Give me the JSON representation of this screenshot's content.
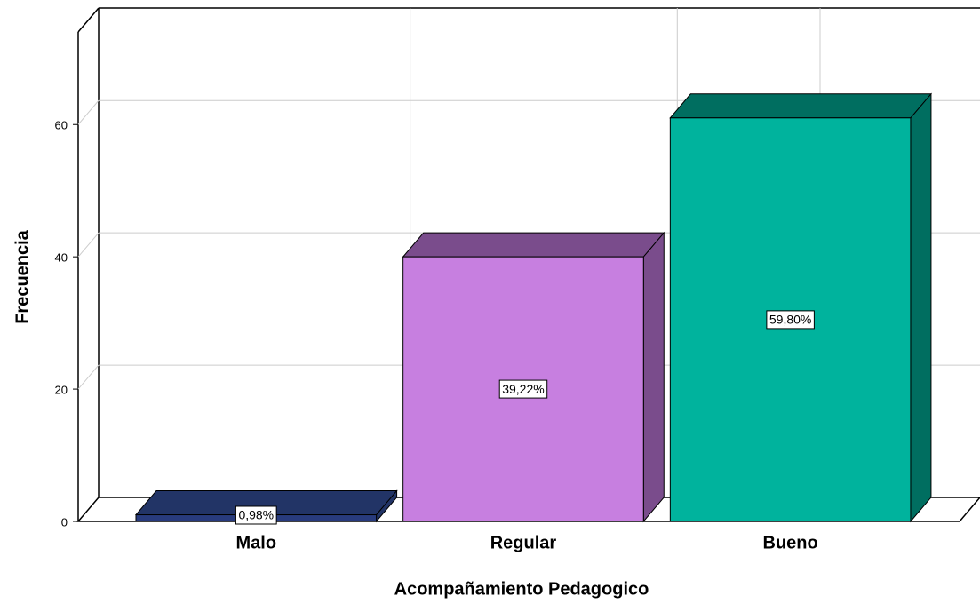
{
  "chart_data": {
    "type": "bar3d",
    "x_label": "Acompañamiento Pedagogico",
    "y_label": "Frecuencia",
    "categories": [
      "Malo",
      "Regular",
      "Bueno"
    ],
    "values": [
      1,
      40,
      61
    ],
    "percent_labels": [
      "0,98%",
      "39,22%",
      "59,80%"
    ],
    "colors": [
      "#283b7d",
      "#c77fe0",
      "#00b39d"
    ],
    "shade_colors": [
      "#223466",
      "#7a4c8c",
      "#006e60"
    ],
    "ylim": [
      0,
      74
    ],
    "yticks": [
      0,
      20,
      40,
      60
    ],
    "grid": true
  }
}
